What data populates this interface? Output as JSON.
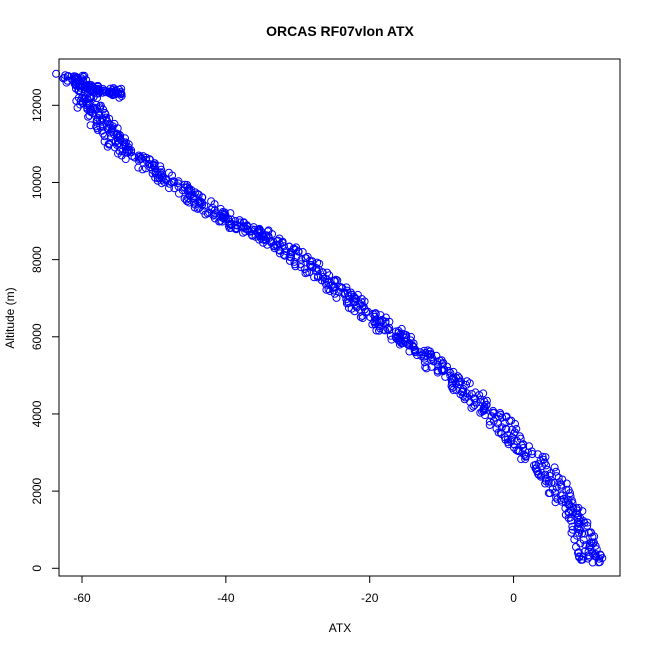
{
  "chart_data": {
    "type": "scatter",
    "title": "ORCAS RF07vlon ATX",
    "xlabel": "ATX",
    "ylabel": "Altitude (m)",
    "xlim": [
      -63.2,
      14.8
    ],
    "ylim": [
      -200,
      13200
    ],
    "x_ticks": [
      -60,
      -40,
      -20,
      0
    ],
    "y_ticks": [
      0,
      2000,
      4000,
      6000,
      8000,
      10000,
      12000
    ],
    "marker": "open-circle",
    "grid": false,
    "legend": "none",
    "series_color": "#0000FF",
    "trace_points": [
      [
        -62.0,
        12750
      ],
      [
        -61.0,
        12700
      ],
      [
        -60.5,
        12550
      ],
      [
        -59.5,
        12450
      ],
      [
        -58.5,
        12420
      ],
      [
        -57.5,
        12380
      ],
      [
        -56.0,
        12350
      ],
      [
        -55.0,
        12300
      ],
      [
        -59.5,
        12200
      ],
      [
        -59.0,
        12000
      ],
      [
        -58.5,
        11800
      ],
      [
        -57.5,
        11600
      ],
      [
        -56.5,
        11400
      ],
      [
        -56.0,
        11200
      ],
      [
        -55.0,
        11000
      ],
      [
        -53.5,
        10800
      ],
      [
        -52.0,
        10600
      ],
      [
        -50.5,
        10400
      ],
      [
        -49.0,
        10200
      ],
      [
        -47.5,
        10000
      ],
      [
        -46.0,
        9800
      ],
      [
        -44.5,
        9600
      ],
      [
        -43.0,
        9400
      ],
      [
        -41.5,
        9200
      ],
      [
        -40.0,
        9050
      ],
      [
        -38.5,
        8900
      ],
      [
        -37.0,
        8780
      ],
      [
        -35.5,
        8700
      ],
      [
        -34.0,
        8560
      ],
      [
        -32.5,
        8400
      ],
      [
        -31.0,
        8200
      ],
      [
        -29.5,
        8000
      ],
      [
        -28.0,
        7800
      ],
      [
        -26.5,
        7550
      ],
      [
        -25.0,
        7300
      ],
      [
        -23.5,
        7100
      ],
      [
        -22.0,
        6900
      ],
      [
        -20.5,
        6650
      ],
      [
        -19.0,
        6400
      ],
      [
        -17.5,
        6200
      ],
      [
        -16.0,
        6000
      ],
      [
        -14.5,
        5800
      ],
      [
        -13.0,
        5600
      ],
      [
        -11.5,
        5400
      ],
      [
        -10.0,
        5150
      ],
      [
        -8.5,
        4900
      ],
      [
        -7.0,
        4650
      ],
      [
        -5.5,
        4400
      ],
      [
        -4.0,
        4150
      ],
      [
        -2.5,
        3900
      ],
      [
        -1.0,
        3600
      ],
      [
        0.5,
        3300
      ],
      [
        2.0,
        3000
      ],
      [
        3.5,
        2700
      ],
      [
        5.0,
        2400
      ],
      [
        6.0,
        2100
      ],
      [
        7.0,
        1800
      ],
      [
        8.0,
        1500
      ],
      [
        9.0,
        1200
      ],
      [
        9.5,
        900
      ],
      [
        10.0,
        600
      ],
      [
        10.5,
        300
      ],
      [
        11.0,
        150
      ]
    ]
  }
}
